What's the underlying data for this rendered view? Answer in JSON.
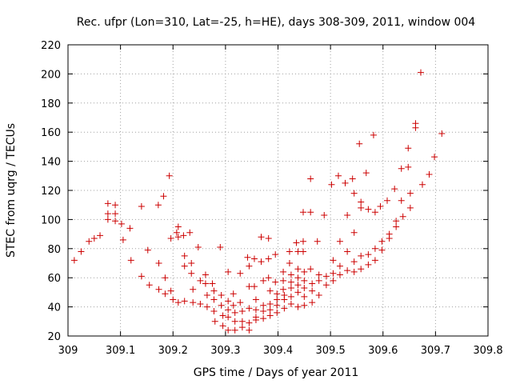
{
  "chart_data": {
    "type": "scatter",
    "title": "Rec. ufpr (Lon=310, Lat=-25, h=HE), days 308-309, 2011, window 004",
    "xlabel": "GPS time / Days of year 2011",
    "ylabel": "STEC from uqrg / TECUs",
    "xlim": [
      309,
      309.8
    ],
    "ylim": [
      20,
      220
    ],
    "x_ticks": [
      309,
      309.1,
      309.2,
      309.3,
      309.4,
      309.5,
      309.6,
      309.7,
      309.8
    ],
    "x_tick_labels": [
      "309",
      "309.1",
      "309.2",
      "309.3",
      "309.4",
      "309.5",
      "309.6",
      "309.7",
      "309.8"
    ],
    "y_ticks": [
      20,
      40,
      60,
      80,
      100,
      120,
      140,
      160,
      180,
      200,
      220
    ],
    "y_tick_labels": [
      "20",
      "40",
      "60",
      "80",
      "100",
      "120",
      "140",
      "160",
      "180",
      "200",
      "220"
    ],
    "grid": true,
    "marker": "plus",
    "color": "#cc0000",
    "series": [
      {
        "points": [
          [
            309.012,
            72
          ],
          [
            309.025,
            78
          ],
          [
            309.04,
            85
          ],
          [
            309.05,
            87
          ],
          [
            309.061,
            89
          ],
          [
            309.076,
            111
          ],
          [
            309.076,
            104
          ],
          [
            309.076,
            100
          ],
          [
            309.09,
            110
          ],
          [
            309.09,
            104
          ],
          [
            309.09,
            99
          ],
          [
            309.102,
            97
          ],
          [
            309.105,
            86
          ],
          [
            309.118,
            94
          ],
          [
            309.12,
            72
          ],
          [
            309.14,
            109
          ],
          [
            309.14,
            61
          ],
          [
            309.152,
            79
          ],
          [
            309.155,
            55
          ],
          [
            309.172,
            110
          ],
          [
            309.173,
            70
          ],
          [
            309.173,
            52
          ],
          [
            309.182,
            116
          ],
          [
            309.185,
            60
          ],
          [
            309.185,
            49
          ],
          [
            309.193,
            130
          ],
          [
            309.196,
            87
          ],
          [
            309.196,
            51
          ],
          [
            309.2,
            45
          ],
          [
            309.207,
            91
          ],
          [
            309.21,
            95
          ],
          [
            309.21,
            88
          ],
          [
            309.21,
            43
          ],
          [
            309.22,
            89
          ],
          [
            309.222,
            75
          ],
          [
            309.222,
            68
          ],
          [
            309.222,
            44
          ],
          [
            309.232,
            91
          ],
          [
            309.235,
            70
          ],
          [
            309.235,
            63
          ],
          [
            309.238,
            52
          ],
          [
            309.238,
            43
          ],
          [
            309.248,
            81
          ],
          [
            309.252,
            58
          ],
          [
            309.252,
            42
          ],
          [
            309.262,
            62
          ],
          [
            309.262,
            56
          ],
          [
            309.265,
            48
          ],
          [
            309.265,
            40
          ],
          [
            309.275,
            56
          ],
          [
            309.278,
            51
          ],
          [
            309.278,
            45
          ],
          [
            309.278,
            37
          ],
          [
            309.28,
            30
          ],
          [
            309.29,
            81
          ],
          [
            309.292,
            48
          ],
          [
            309.292,
            41
          ],
          [
            309.295,
            34
          ],
          [
            309.295,
            27
          ],
          [
            309.305,
            64
          ],
          [
            309.305,
            44
          ],
          [
            309.305,
            38
          ],
          [
            309.305,
            33
          ],
          [
            309.305,
            24
          ],
          [
            309.315,
            49
          ],
          [
            309.315,
            41
          ],
          [
            309.318,
            36
          ],
          [
            309.318,
            30
          ],
          [
            309.318,
            24
          ],
          [
            309.328,
            63
          ],
          [
            309.328,
            43
          ],
          [
            309.332,
            37
          ],
          [
            309.332,
            30
          ],
          [
            309.332,
            26
          ],
          [
            309.342,
            74
          ],
          [
            309.345,
            68
          ],
          [
            309.345,
            54
          ],
          [
            309.345,
            39
          ],
          [
            309.345,
            29
          ],
          [
            309.345,
            24
          ],
          [
            309.355,
            73
          ],
          [
            309.355,
            54
          ],
          [
            309.358,
            45
          ],
          [
            309.358,
            38
          ],
          [
            309.358,
            33
          ],
          [
            309.358,
            31
          ],
          [
            309.368,
            88
          ],
          [
            309.368,
            71
          ],
          [
            309.372,
            58
          ],
          [
            309.372,
            41
          ],
          [
            309.372,
            37
          ],
          [
            309.372,
            32
          ],
          [
            309.382,
            87
          ],
          [
            309.382,
            73
          ],
          [
            309.382,
            60
          ],
          [
            309.385,
            51
          ],
          [
            309.385,
            42
          ],
          [
            309.385,
            38
          ],
          [
            309.385,
            34
          ],
          [
            309.395,
            76
          ],
          [
            309.395,
            57
          ],
          [
            309.398,
            49
          ],
          [
            309.398,
            45
          ],
          [
            309.398,
            41
          ],
          [
            309.398,
            36
          ],
          [
            309.41,
            64
          ],
          [
            309.41,
            58
          ],
          [
            309.41,
            52
          ],
          [
            309.412,
            48
          ],
          [
            309.412,
            45
          ],
          [
            309.412,
            39
          ],
          [
            309.422,
            78
          ],
          [
            309.422,
            70
          ],
          [
            309.425,
            62
          ],
          [
            309.425,
            57
          ],
          [
            309.425,
            53
          ],
          [
            309.425,
            47
          ],
          [
            309.425,
            42
          ],
          [
            309.435,
            84
          ],
          [
            309.438,
            78
          ],
          [
            309.438,
            66
          ],
          [
            309.438,
            60
          ],
          [
            309.438,
            55
          ],
          [
            309.438,
            50
          ],
          [
            309.438,
            40
          ],
          [
            309.448,
            105
          ],
          [
            309.448,
            85
          ],
          [
            309.448,
            78
          ],
          [
            309.45,
            64
          ],
          [
            309.45,
            58
          ],
          [
            309.45,
            53
          ],
          [
            309.45,
            47
          ],
          [
            309.45,
            41
          ],
          [
            309.462,
            128
          ],
          [
            309.462,
            105
          ],
          [
            309.462,
            66
          ],
          [
            309.465,
            56
          ],
          [
            309.465,
            51
          ],
          [
            309.465,
            43
          ],
          [
            309.475,
            85
          ],
          [
            309.478,
            62
          ],
          [
            309.478,
            58
          ],
          [
            309.478,
            48
          ],
          [
            309.488,
            103
          ],
          [
            309.492,
            61
          ],
          [
            309.492,
            55
          ],
          [
            309.502,
            124
          ],
          [
            309.505,
            72
          ],
          [
            309.505,
            63
          ],
          [
            309.505,
            58
          ],
          [
            309.515,
            130
          ],
          [
            309.518,
            85
          ],
          [
            309.518,
            68
          ],
          [
            309.518,
            62
          ],
          [
            309.528,
            125
          ],
          [
            309.532,
            103
          ],
          [
            309.532,
            78
          ],
          [
            309.532,
            65
          ],
          [
            309.542,
            128
          ],
          [
            309.545,
            118
          ],
          [
            309.545,
            91
          ],
          [
            309.545,
            71
          ],
          [
            309.545,
            64
          ],
          [
            309.555,
            152
          ],
          [
            309.558,
            112
          ],
          [
            309.558,
            108
          ],
          [
            309.558,
            75
          ],
          [
            309.558,
            66
          ],
          [
            309.568,
            132
          ],
          [
            309.572,
            107
          ],
          [
            309.572,
            76
          ],
          [
            309.572,
            69
          ],
          [
            309.582,
            158
          ],
          [
            309.585,
            105
          ],
          [
            309.585,
            80
          ],
          [
            309.585,
            72
          ],
          [
            309.595,
            109
          ],
          [
            309.598,
            85
          ],
          [
            309.598,
            79
          ],
          [
            309.608,
            113
          ],
          [
            309.612,
            90
          ],
          [
            309.612,
            87
          ],
          [
            309.622,
            121
          ],
          [
            309.625,
            99
          ],
          [
            309.625,
            95
          ],
          [
            309.635,
            135
          ],
          [
            309.635,
            113
          ],
          [
            309.638,
            102
          ],
          [
            309.648,
            149
          ],
          [
            309.648,
            136
          ],
          [
            309.652,
            118
          ],
          [
            309.652,
            108
          ],
          [
            309.662,
            166
          ],
          [
            309.662,
            163
          ],
          [
            309.672,
            201
          ],
          [
            309.675,
            124
          ],
          [
            309.688,
            131
          ],
          [
            309.698,
            143
          ],
          [
            309.712,
            159
          ]
        ]
      }
    ]
  }
}
